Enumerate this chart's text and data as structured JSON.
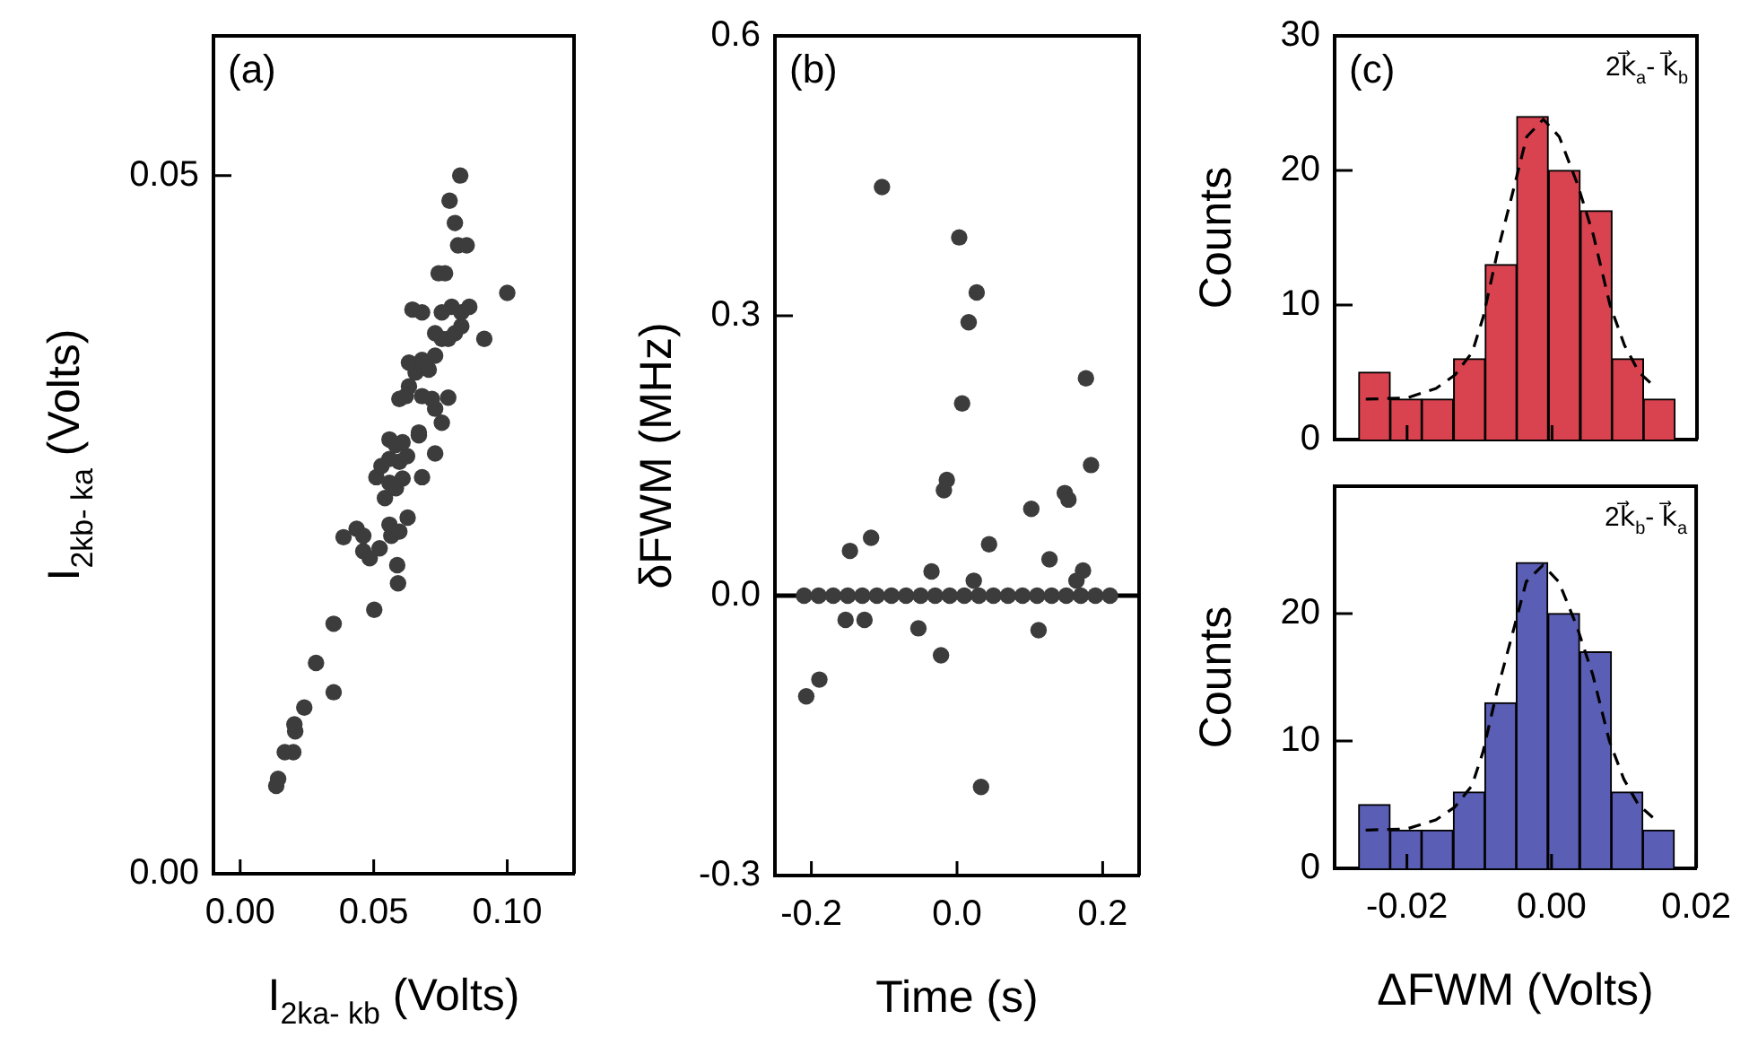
{
  "chart_data": [
    {
      "type": "scatter",
      "xlabel": "I$_{2ka- kb}$ (Volts)",
      "ylabel": "I$_{2kb- ka}$ (Volts)",
      "annotations": [
        "(a)"
      ],
      "marker": "circle",
      "color": "#3c3c3c",
      "x": [
        0.0135,
        0.0142,
        0.0167,
        0.0199,
        0.0206,
        0.0203,
        0.024,
        0.0284,
        0.035,
        0.035,
        0.0502,
        0.0387,
        0.0436,
        0.0461,
        0.0485,
        0.0461,
        0.0522,
        0.0588,
        0.0591,
        0.0559,
        0.0566,
        0.0596,
        0.0627,
        0.0542,
        0.0559,
        0.051,
        0.0583,
        0.0608,
        0.0529,
        0.0559,
        0.0596,
        0.0625,
        0.0681,
        0.073,
        0.0669,
        0.0559,
        0.0583,
        0.0608,
        0.0669,
        0.0755,
        0.073,
        0.0718,
        0.0779,
        0.0596,
        0.062,
        0.0681,
        0.0632,
        0.0657,
        0.0706,
        0.0632,
        0.0681,
        0.073,
        0.0755,
        0.073,
        0.0779,
        0.0804,
        0.0828,
        0.0828,
        0.0914,
        0.0858,
        0.0792,
        0.0755,
        0.0645,
        0.0681,
        0.0743,
        0.0767,
        0.1,
        0.0816,
        0.0848,
        0.0804,
        0.0784,
        0.0824
      ],
      "values": [
        0.0063,
        0.0068,
        0.0087,
        0.0087,
        0.0102,
        0.0107,
        0.0119,
        0.0151,
        0.013,
        0.0179,
        0.0189,
        0.0241,
        0.0247,
        0.0231,
        0.0226,
        0.0242,
        0.0233,
        0.0221,
        0.0208,
        0.025,
        0.0242,
        0.0245,
        0.0255,
        0.0269,
        0.028,
        0.0284,
        0.0276,
        0.0283,
        0.0292,
        0.0297,
        0.0295,
        0.0299,
        0.0284,
        0.0301,
        0.0314,
        0.0311,
        0.0307,
        0.0309,
        0.0316,
        0.0323,
        0.0333,
        0.034,
        0.0341,
        0.034,
        0.0342,
        0.0342,
        0.0349,
        0.0359,
        0.0361,
        0.0366,
        0.0368,
        0.0371,
        0.0383,
        0.0387,
        0.0383,
        0.0387,
        0.0392,
        0.0402,
        0.0383,
        0.0406,
        0.0406,
        0.0402,
        0.0404,
        0.0402,
        0.043,
        0.043,
        0.0416,
        0.045,
        0.045,
        0.0466,
        0.0482,
        0.05
      ],
      "xlim": [
        -0.01,
        0.125
      ],
      "xticks": [
        {
          "value": 0,
          "label": "0.00"
        },
        {
          "value": 0.05,
          "label": "0.05"
        },
        {
          "value": 0.1,
          "label": "0.10"
        }
      ],
      "ylim": [
        0,
        0.06
      ],
      "yticks": [
        {
          "value": 0,
          "label": "0.00"
        },
        {
          "value": 0.05,
          "label": "0.05"
        }
      ]
    },
    {
      "type": "scatter",
      "xlabel": "Time (s)",
      "ylabel": "δFWM (MHz)",
      "annotations": [
        "(b)"
      ],
      "marker": "circle",
      "color": "#3c3c3c",
      "x": [
        -0.103,
        0.003,
        0.027,
        0.016,
        0.007,
        0.177,
        0.184,
        -0.014,
        -0.018,
        0.102,
        0.148,
        0.153,
        0.044,
        0.127,
        0.173,
        0.164,
        0.023,
        -0.035,
        -0.118,
        -0.147,
        -0.153,
        -0.127,
        -0.053,
        -0.022,
        0.112,
        -0.207,
        -0.189,
        0.033,
        -0.21,
        -0.19,
        -0.17,
        -0.15,
        -0.13,
        -0.11,
        -0.09,
        -0.07,
        -0.05,
        -0.03,
        -0.01,
        0.01,
        0.03,
        0.05,
        0.07,
        0.09,
        0.11,
        0.13,
        0.15,
        0.17,
        0.19,
        0.21
      ],
      "values": [
        0.438,
        0.384,
        0.325,
        0.293,
        0.206,
        0.233,
        0.14,
        0.124,
        0.113,
        0.093,
        0.11,
        0.103,
        0.055,
        0.039,
        0.027,
        0.016,
        0.016,
        0.026,
        0.062,
        0.048,
        -0.026,
        -0.026,
        -0.035,
        -0.064,
        -0.037,
        -0.108,
        -0.09,
        -0.205,
        0,
        0,
        0,
        0,
        0,
        0,
        0,
        0,
        0,
        0,
        0,
        0,
        0,
        0,
        0,
        0,
        0,
        0,
        0,
        0,
        0,
        0
      ],
      "ref_lines": [
        {
          "axis": "y",
          "value": 0,
          "color": "#000000"
        }
      ],
      "xlim": [
        -0.25,
        0.25
      ],
      "xticks": [
        {
          "value": -0.2,
          "label": "-0.2"
        },
        {
          "value": 0,
          "label": "0.0"
        },
        {
          "value": 0.2,
          "label": "0.2"
        }
      ],
      "ylim": [
        -0.3,
        0.6
      ],
      "yticks": [
        {
          "value": -0.3,
          "label": "-0.3"
        },
        {
          "value": 0,
          "label": "0.0"
        },
        {
          "value": 0.3,
          "label": "0.3"
        },
        {
          "value": 0.6,
          "label": "0.6"
        }
      ]
    },
    {
      "type": "histogram",
      "ylabel": "Counts",
      "annotations": [
        "(c)",
        "2k⃗$_{a}$- k⃗$_{b}$"
      ],
      "tick_labels": "y",
      "series": [
        {
          "type": "histogram",
          "color": "#d9434f",
          "bins": [
            -0.0267,
            -0.0223,
            -0.018,
            -0.0136,
            -0.0092,
            -0.0049,
            -0.0005,
            0.0039,
            0.0083,
            0.0126,
            0.017
          ],
          "values": [
            5,
            3,
            3,
            6,
            13,
            24,
            20,
            17,
            6,
            3
          ]
        },
        {
          "type": "line",
          "color": "#000000",
          "line_style": "dashed",
          "marker": "none",
          "x": [
            -0.0257,
            -0.02,
            -0.016,
            -0.0134,
            -0.011,
            -0.0095,
            -0.0075,
            -0.0055,
            -0.0035,
            -0.0012,
            0.001,
            0.0035,
            0.0057,
            0.008,
            0.01,
            0.012,
            0.014
          ],
          "values": [
            3,
            3.1,
            3.8,
            4.8,
            6.5,
            9.1,
            14,
            18.2,
            22.5,
            23.8,
            22.5,
            19,
            15.2,
            10,
            7,
            5,
            4
          ]
        }
      ],
      "xlim": [
        -0.03,
        0.02
      ],
      "xticks": [
        {
          "value": -0.02,
          "label": null
        },
        {
          "value": 0,
          "label": null
        },
        {
          "value": 0.02,
          "label": null
        }
      ],
      "ylim": [
        0,
        30
      ],
      "yticks": [
        0,
        10,
        20,
        30
      ]
    },
    {
      "type": "histogram",
      "xlabel": "ΔFWM (Volts)",
      "ylabel": "Counts",
      "annotations": [
        null,
        "2k⃗$_{b}$- k⃗$_{a}$"
      ],
      "series": [
        {
          "type": "histogram",
          "color": "#5a5eb4",
          "bins": [
            -0.0267,
            -0.0223,
            -0.018,
            -0.0136,
            -0.0092,
            -0.0049,
            -0.0005,
            0.0039,
            0.0083,
            0.0126,
            0.017
          ],
          "values": [
            5,
            3,
            3,
            6,
            13,
            24,
            20,
            17,
            6,
            3
          ]
        },
        {
          "type": "line",
          "color": "#000000",
          "line_style": "dashed",
          "marker": "none",
          "x": [
            -0.0257,
            -0.02,
            -0.016,
            -0.0134,
            -0.011,
            -0.0095,
            -0.0075,
            -0.0055,
            -0.0035,
            -0.0012,
            0.001,
            0.0035,
            0.0057,
            0.008,
            0.01,
            0.012,
            0.014
          ],
          "values": [
            3,
            3.1,
            3.8,
            4.8,
            6.5,
            9.1,
            14,
            18.2,
            22.5,
            23.8,
            22.5,
            19,
            15.2,
            10,
            7,
            5,
            4
          ]
        }
      ],
      "xlim": [
        -0.03,
        0.02
      ],
      "xticks": [
        {
          "value": -0.02,
          "label": "-0.02"
        },
        {
          "value": 0,
          "label": "0.00"
        },
        {
          "value": 0.02,
          "label": "0.02"
        }
      ],
      "ylim": [
        0,
        30
      ],
      "yticks": [
        0,
        10,
        20
      ]
    }
  ]
}
